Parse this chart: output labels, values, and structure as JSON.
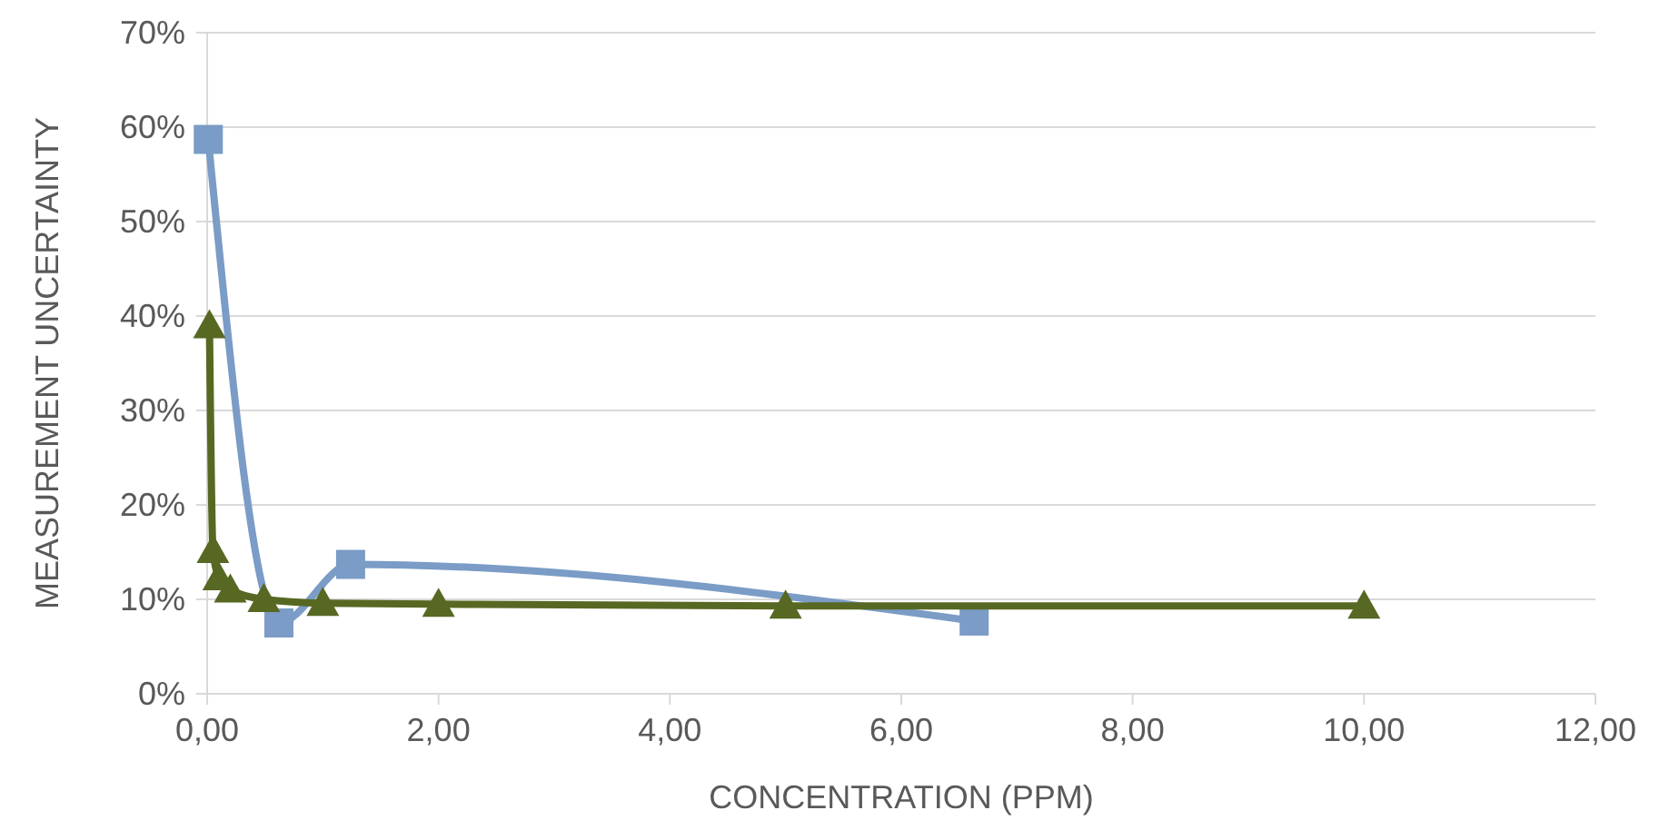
{
  "chart_data": {
    "type": "line",
    "xlabel": "CONCENTRATION (PPM)",
    "ylabel": "MEASUREMENT UNCERTAINTY",
    "xlim": [
      0,
      12
    ],
    "xticks": [
      {
        "value": 0,
        "label": "0,00"
      },
      {
        "value": 2,
        "label": "2,00"
      },
      {
        "value": 4,
        "label": "4,00"
      },
      {
        "value": 6,
        "label": "6,00"
      },
      {
        "value": 8,
        "label": "8,00"
      },
      {
        "value": 10,
        "label": "10,00"
      },
      {
        "value": 12,
        "label": "12,00"
      }
    ],
    "ylim": [
      0,
      70
    ],
    "yticks": [
      {
        "value": 0,
        "label": "0%"
      },
      {
        "value": 10,
        "label": "10%"
      },
      {
        "value": 20,
        "label": "20%"
      },
      {
        "value": 30,
        "label": "30%"
      },
      {
        "value": 40,
        "label": "40%"
      },
      {
        "value": 50,
        "label": "50%"
      },
      {
        "value": 60,
        "label": "60%"
      },
      {
        "value": 70,
        "label": "70%"
      }
    ],
    "grid": "y",
    "series": [
      {
        "color": "#7a9cc6",
        "marker": "square",
        "x": [
          0.01,
          0.62,
          1.24,
          6.63
        ],
        "values": [
          58.7,
          7.5,
          13.7,
          7.7
        ]
      },
      {
        "color": "#576823",
        "marker": "triangle",
        "x": [
          0.02,
          0.05,
          0.1,
          0.2,
          0.49,
          1.0,
          2.0,
          5.0,
          10.0
        ],
        "values": [
          39.0,
          15.2,
          12.3,
          11.0,
          10.0,
          9.6,
          9.5,
          9.3,
          9.3
        ]
      }
    ]
  }
}
